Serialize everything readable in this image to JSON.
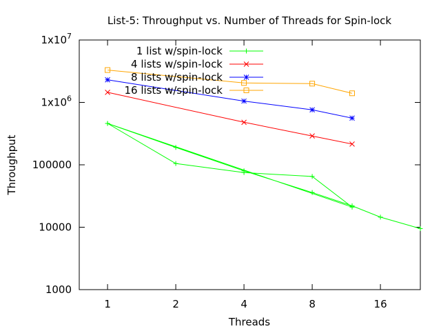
{
  "chart_data": {
    "type": "line",
    "title": "List-5: Throughput vs. Number of Threads for Spin-lock",
    "xlabel": "Threads",
    "ylabel": "Throughput",
    "x_scale": "log2",
    "y_scale": "log10",
    "xlim": [
      0.75,
      24
    ],
    "ylim": [
      1000,
      10000000
    ],
    "x_ticks": [
      {
        "value": 1,
        "label": "1"
      },
      {
        "value": 2,
        "label": "2"
      },
      {
        "value": 4,
        "label": "4"
      },
      {
        "value": 8,
        "label": "8"
      },
      {
        "value": 16,
        "label": "16"
      }
    ],
    "y_ticks": [
      {
        "value": 1000,
        "label": "1000"
      },
      {
        "value": 10000,
        "label": "10000"
      },
      {
        "value": 100000,
        "label": "100000"
      },
      {
        "value": 1000000,
        "label": "1x10",
        "sup": "6"
      },
      {
        "value": 10000000,
        "label": "1x10",
        "sup": "7"
      }
    ],
    "grid": false,
    "legend_position": "top-right",
    "series": [
      {
        "name": "1 list w/spin-lock",
        "color": "#00ff00",
        "marker": "plus",
        "x": [
          1,
          2,
          4,
          8,
          12,
          1,
          2,
          4,
          8,
          12,
          16,
          24
        ],
        "y": [
          460000,
          105000,
          75000,
          65000,
          21000,
          460000,
          190000,
          80000,
          36000,
          22000,
          14500,
          9500
        ]
      },
      {
        "name": "4 lists w/spin-lock",
        "color": "#ff0000",
        "marker": "cross",
        "x": [
          1,
          4,
          8,
          12
        ],
        "y": [
          1450000,
          480000,
          290000,
          215000
        ]
      },
      {
        "name": "8 lists w/spin-lock",
        "color": "#0000ff",
        "marker": "star",
        "x": [
          1,
          4,
          8,
          12
        ],
        "y": [
          2300000,
          1050000,
          760000,
          560000
        ]
      },
      {
        "name": "16 lists w/spin-lock",
        "color": "#ffa500",
        "marker": "square",
        "x": [
          1,
          4,
          8,
          12
        ],
        "y": [
          3300000,
          2050000,
          2000000,
          1400000
        ]
      }
    ]
  }
}
